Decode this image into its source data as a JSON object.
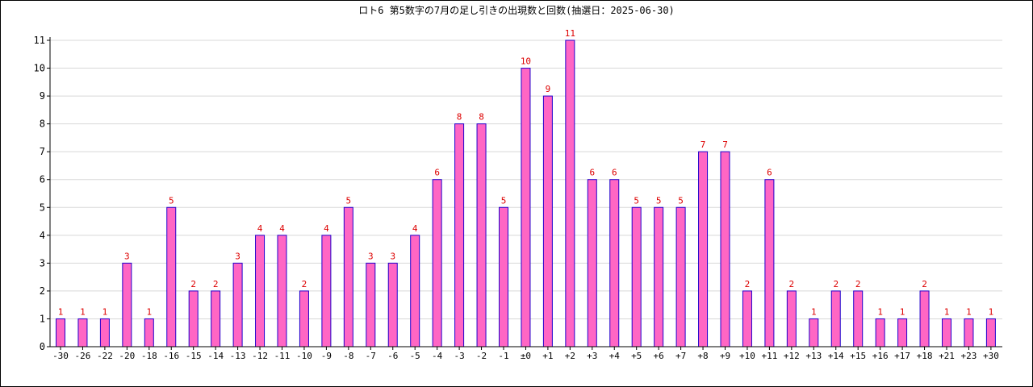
{
  "chart_data": {
    "type": "bar",
    "title": "ロト6 第5数字の7月の足し引きの出現数と回数(抽選日：2025-06-30)",
    "xlabel": "",
    "ylabel": "",
    "ylim": [
      0,
      11
    ],
    "yticks": [
      0,
      1,
      2,
      3,
      4,
      5,
      6,
      7,
      8,
      9,
      10,
      11
    ],
    "grid": true,
    "legend": "none",
    "categories": [
      "-30",
      "-26",
      "-22",
      "-20",
      "-18",
      "-16",
      "-15",
      "-14",
      "-13",
      "-12",
      "-11",
      "-10",
      "-9",
      "-8",
      "-7",
      "-6",
      "-5",
      "-4",
      "-3",
      "-2",
      "-1",
      "±0",
      "+1",
      "+2",
      "+3",
      "+4",
      "+5",
      "+6",
      "+7",
      "+8",
      "+9",
      "+10",
      "+11",
      "+12",
      "+13",
      "+14",
      "+15",
      "+16",
      "+17",
      "+18",
      "+21",
      "+23",
      "+30"
    ],
    "values": [
      1,
      1,
      1,
      3,
      1,
      5,
      2,
      2,
      3,
      4,
      4,
      2,
      4,
      5,
      3,
      3,
      4,
      6,
      8,
      8,
      5,
      10,
      9,
      11,
      6,
      6,
      5,
      5,
      5,
      7,
      7,
      2,
      6,
      2,
      1,
      2,
      2,
      1,
      1,
      2,
      1,
      1,
      1
    ],
    "colors": {
      "bar_fill": "#ff66c4",
      "bar_stroke": "#2200cc",
      "value_label": "#dd0000",
      "grid": "#d8d8d8",
      "axis": "#000000"
    }
  }
}
